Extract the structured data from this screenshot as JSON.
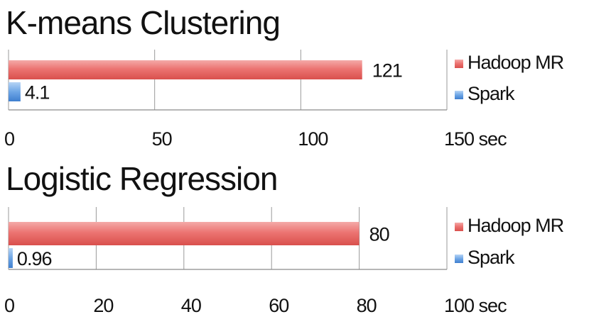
{
  "colors": {
    "hadoop": "#e8625f",
    "hadoop_light": "#f6b3b1",
    "spark": "#4f8fdc",
    "spark_light": "#a9ccf3",
    "grid": "#9a9a9a"
  },
  "chart_data": [
    {
      "type": "bar",
      "orientation": "horizontal",
      "title": "K-means Clustering",
      "unit": "sec",
      "xlim": [
        0,
        150
      ],
      "ticks": [
        0,
        50,
        100,
        150
      ],
      "tick_labels": [
        "0",
        "50",
        "100",
        "150 sec"
      ],
      "series": [
        {
          "name": "Hadoop MR",
          "value": 121,
          "label": "121",
          "color_key": "hadoop"
        },
        {
          "name": "Spark",
          "value": 4.1,
          "label": "4.1",
          "color_key": "spark"
        }
      ],
      "legend": [
        "Hadoop MR",
        "Spark"
      ],
      "legend_position": "right",
      "grid": true
    },
    {
      "type": "bar",
      "orientation": "horizontal",
      "title": "Logistic Regression",
      "unit": "sec",
      "xlim": [
        0,
        100
      ],
      "ticks": [
        0,
        20,
        40,
        60,
        80,
        100
      ],
      "tick_labels": [
        "0",
        "20",
        "40",
        "60",
        "80",
        "100 sec"
      ],
      "series": [
        {
          "name": "Hadoop MR",
          "value": 80,
          "label": "80",
          "color_key": "hadoop"
        },
        {
          "name": "Spark",
          "value": 0.96,
          "label": "0.96",
          "color_key": "spark"
        }
      ],
      "legend": [
        "Hadoop MR",
        "Spark"
      ],
      "legend_position": "right",
      "grid": true
    }
  ]
}
